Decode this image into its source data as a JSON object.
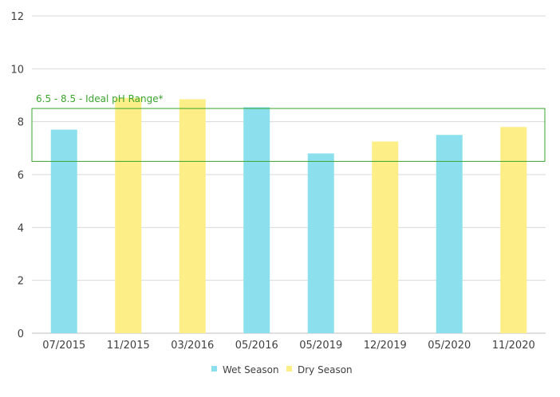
{
  "chart_data": {
    "type": "bar",
    "categories": [
      "07/2015",
      "11/2015",
      "03/2016",
      "05/2016",
      "05/2019",
      "12/2019",
      "05/2020",
      "11/2020"
    ],
    "values": [
      7.7,
      8.9,
      8.85,
      8.55,
      6.8,
      7.25,
      7.5,
      7.8
    ],
    "season": [
      "wet",
      "dry",
      "dry",
      "wet",
      "wet",
      "dry",
      "wet",
      "dry"
    ],
    "series": [
      {
        "name": "Wet Season",
        "color": "#8ce0ee"
      },
      {
        "name": "Dry Season",
        "color": "#fdee88"
      }
    ],
    "ylim": [
      0,
      12
    ],
    "yticks": [
      0,
      2,
      4,
      6,
      8,
      10,
      12
    ],
    "grid": true,
    "legend_position": "bottom",
    "reference_band": {
      "low": 6.5,
      "high": 8.5,
      "label": "6.5 - 8.5 - Ideal pH Range*",
      "color": "#3aa52d"
    },
    "title": "",
    "xlabel": "",
    "ylabel": ""
  }
}
